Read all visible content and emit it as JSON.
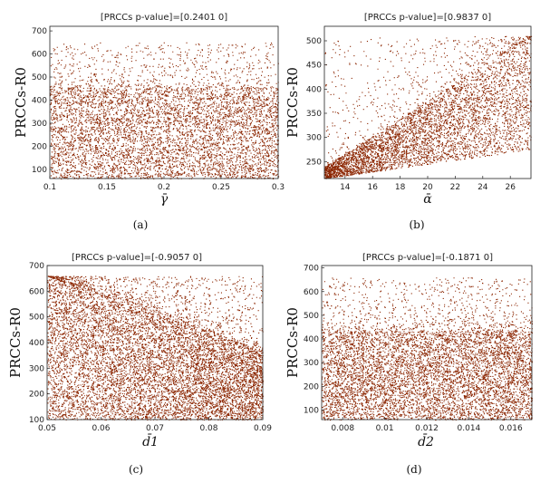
{
  "chart_data": [
    {
      "type": "scatter",
      "title": "[PRCCs p-value]=[0.2401 0]",
      "ylabel": "PRCCs-R0",
      "xlabel": "γ̄",
      "caption": "(a)",
      "xlim": [
        0.1,
        0.3
      ],
      "ylim": [
        60,
        720
      ],
      "xticks": [
        "0.1",
        "0.15",
        "0.2",
        "0.25",
        "0.3"
      ],
      "xtick_values": [
        0.1,
        0.15,
        0.2,
        0.25,
        0.3
      ],
      "yticks": [
        "100",
        "200",
        "300",
        "400",
        "500",
        "600",
        "700"
      ],
      "ytick_values": [
        100,
        200,
        300,
        400,
        500,
        600,
        700
      ],
      "point_color": "#8b2500",
      "cloud": {
        "x_range": [
          0.1,
          0.3
        ],
        "y_low_start": 60,
        "y_low_end": 60,
        "y_core_start": 450,
        "y_core_end": 450,
        "y_max": 650
      },
      "points_estimated": 6000
    },
    {
      "type": "scatter",
      "title": "[PRCCs p-value]=[0.9837 0]",
      "ylabel": "PRCCs-R0",
      "xlabel": "ᾱ",
      "caption": "(b)",
      "xlim": [
        12.5,
        27.5
      ],
      "ylim": [
        215,
        530
      ],
      "xticks": [
        "14",
        "16",
        "18",
        "20",
        "22",
        "24",
        "26"
      ],
      "xtick_values": [
        14,
        16,
        18,
        20,
        22,
        24,
        26
      ],
      "yticks": [
        "250",
        "300",
        "350",
        "400",
        "450",
        "500"
      ],
      "ytick_values": [
        250,
        300,
        350,
        400,
        450,
        500
      ],
      "point_color": "#8b2500",
      "cloud": {
        "x_range": [
          12.5,
          27.5
        ],
        "y_low_start": 215,
        "y_low_end": 275,
        "y_core_start": 240,
        "y_core_end": 510,
        "y_max": 510
      },
      "points_estimated": 5000
    },
    {
      "type": "scatter",
      "title": "[PRCCs p-value]=[-0.9057 0]",
      "ylabel": "PRCCs-R0",
      "xlabel": "d̄1",
      "caption": "(c)",
      "xlim": [
        0.05,
        0.09
      ],
      "ylim": [
        100,
        700
      ],
      "xticks": [
        "0.05",
        "0.06",
        "0.07",
        "0.08",
        "0.09"
      ],
      "xtick_values": [
        0.05,
        0.06,
        0.07,
        0.08,
        0.09
      ],
      "yticks": [
        "100",
        "200",
        "300",
        "400",
        "500",
        "600",
        "700"
      ],
      "ytick_values": [
        100,
        200,
        300,
        400,
        500,
        600,
        700
      ],
      "point_color": "#8b2500",
      "cloud": {
        "x_range": [
          0.05,
          0.09
        ],
        "y_low_start": 100,
        "y_low_end": 100,
        "y_core_start": 660,
        "y_core_end": 370,
        "y_max": 660
      },
      "points_estimated": 9000
    },
    {
      "type": "scatter",
      "title": "[PRCCs p-value]=[-0.1871 0]",
      "ylabel": "PRCCs-R0",
      "xlabel": "d̄2",
      "caption": "(d)",
      "xlim": [
        0.007,
        0.017
      ],
      "ylim": [
        60,
        710
      ],
      "xticks": [
        "0.008",
        "0.01",
        "0.012",
        "0.014",
        "0.016"
      ],
      "xtick_values": [
        0.008,
        0.01,
        0.012,
        0.014,
        0.016
      ],
      "yticks": [
        "100",
        "200",
        "300",
        "400",
        "500",
        "600",
        "700"
      ],
      "ytick_values": [
        100,
        200,
        300,
        400,
        500,
        600,
        700
      ],
      "point_color": "#8b2500",
      "cloud": {
        "x_range": [
          0.007,
          0.017
        ],
        "y_low_start": 60,
        "y_low_end": 60,
        "y_core_start": 430,
        "y_core_end": 430,
        "y_max": 660
      },
      "points_estimated": 7000
    }
  ]
}
